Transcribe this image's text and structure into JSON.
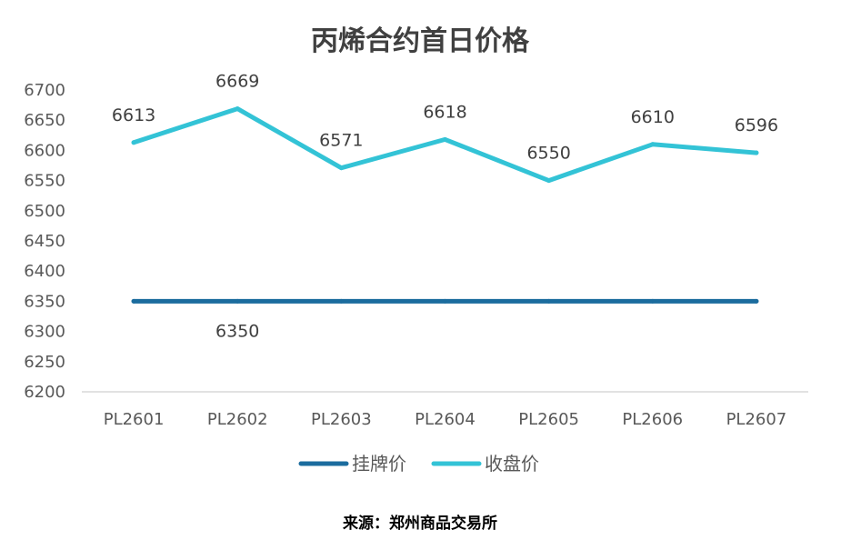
{
  "chart_data": {
    "type": "line",
    "title": "丙烯合约首日价格",
    "categories": [
      "PL2601",
      "PL2602",
      "PL2603",
      "PL2604",
      "PL2605",
      "PL2606",
      "PL2607"
    ],
    "yticks": [
      "6700",
      "6650",
      "6600",
      "6550",
      "6500",
      "6450",
      "6400",
      "6350",
      "6300",
      "6250",
      "6200"
    ],
    "ylim": [
      6200,
      6700
    ],
    "grid": false,
    "legend_position": "bottom",
    "series": [
      {
        "name": "挂牌价",
        "values": [
          6350,
          6350,
          6350,
          6350,
          6350,
          6350,
          6350
        ],
        "labels": [
          "",
          "6350",
          "",
          "",
          "",
          "",
          ""
        ],
        "color": "#1B6C9E",
        "label_position": "below"
      },
      {
        "name": "收盘价",
        "values": [
          6613,
          6669,
          6571,
          6618,
          6550,
          6610,
          6596
        ],
        "labels": [
          "6613",
          "6669",
          "6571",
          "6618",
          "6550",
          "6610",
          "6596"
        ],
        "color": "#33C3D6",
        "label_position": "above"
      }
    ]
  },
  "source_note": "来源：郑州商品交易所"
}
